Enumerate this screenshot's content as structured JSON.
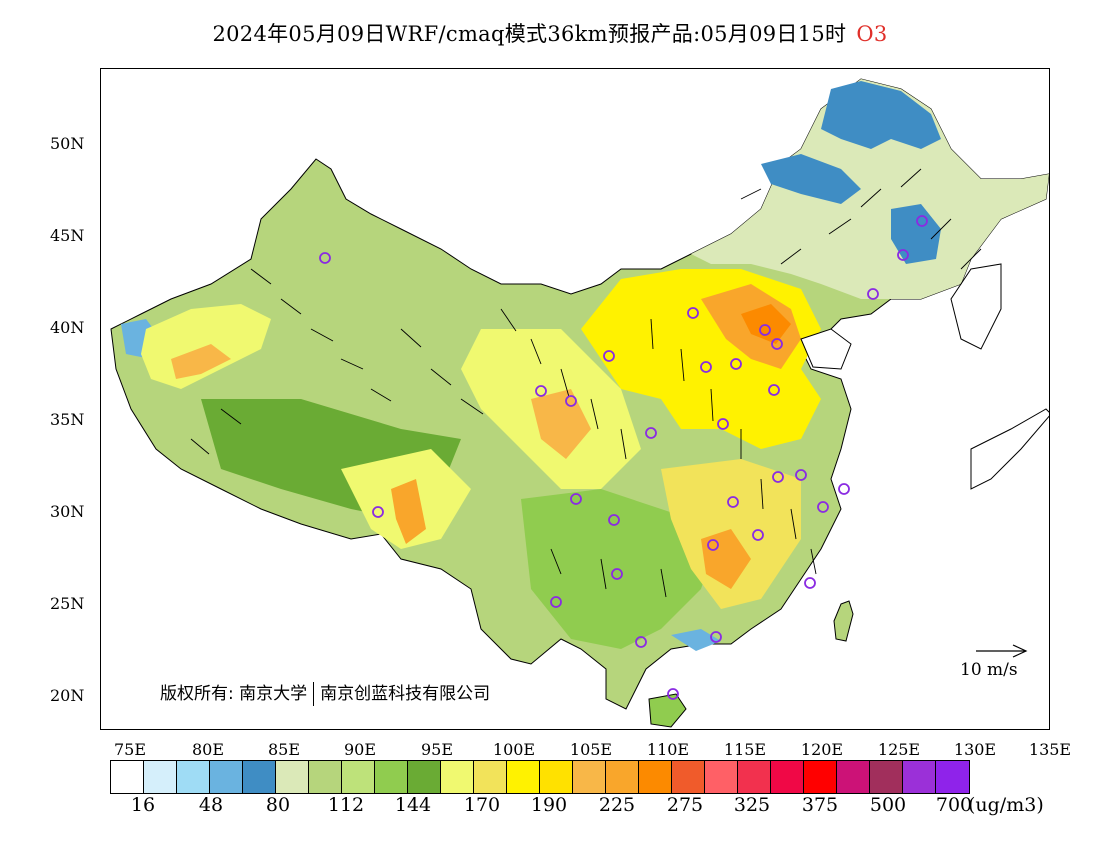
{
  "title": {
    "text": "2024年05月09日WRF/cmaq模式36km预报产品:05月09日15时",
    "pollutant": "O3",
    "pollutant_color": "#e0302a"
  },
  "axes": {
    "lat_labels": [
      "50N",
      "45N",
      "40N",
      "35N",
      "30N",
      "25N",
      "20N"
    ],
    "lon_labels": [
      "75E",
      "80E",
      "85E",
      "90E",
      "95E",
      "100E",
      "105E",
      "110E",
      "115E",
      "120E",
      "125E",
      "130E",
      "135E"
    ]
  },
  "copyright": {
    "prefix": "版权所有:",
    "org1": "南京大学",
    "org2": "南京创蓝科技有限公司"
  },
  "vector_reference": "10 m/s",
  "colorbar": {
    "colors": [
      "#ffffff",
      "#d5effb",
      "#9fdcf5",
      "#6ab3e0",
      "#3f8dc4",
      "#dbe9b8",
      "#b6d57c",
      "#bee27a",
      "#90cc4f",
      "#6aab34",
      "#f0f970",
      "#f2e35a",
      "#fff200",
      "#ffe100",
      "#f8b748",
      "#f9a62b",
      "#fc8a00",
      "#f05b2b",
      "#ff6066",
      "#f2314e",
      "#f00846",
      "#ff0000",
      "#cc1277",
      "#a12f5c",
      "#9b30d8",
      "#8f23ea"
    ],
    "labels": [
      "16",
      "48",
      "80",
      "112",
      "144",
      "170",
      "190",
      "225",
      "275",
      "325",
      "375",
      "500",
      "700"
    ],
    "unit": "(ug/m3)"
  }
}
